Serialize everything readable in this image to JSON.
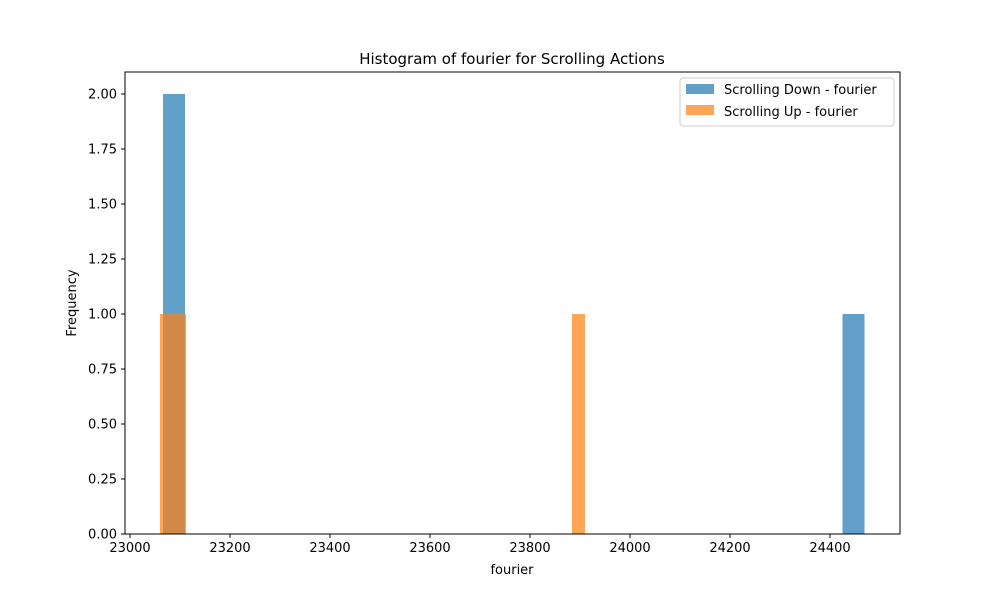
{
  "chart_data": {
    "type": "histogram",
    "title": "Histogram of fourier for Scrolling Actions",
    "xlabel": "fourier",
    "ylabel": "Frequency",
    "xlim": [
      22990,
      24540
    ],
    "ylim": [
      0,
      2.1
    ],
    "xticks": [
      23000,
      23200,
      23400,
      23600,
      23800,
      24000,
      24200,
      24400
    ],
    "yticks": [
      "0.00",
      "0.25",
      "0.50",
      "0.75",
      "1.00",
      "1.25",
      "1.50",
      "1.75",
      "2.00"
    ],
    "grid": false,
    "legend_position": "top-right",
    "series": [
      {
        "name": "Scrolling Down - fourier",
        "color": "#1f77b4",
        "opacity": 0.7,
        "bins": [
          {
            "x0": 23066,
            "x1": 23110,
            "count": 2
          },
          {
            "x0": 24425,
            "x1": 24469,
            "count": 1
          }
        ]
      },
      {
        "name": "Scrolling Up - fourier",
        "color": "#ff7f0e",
        "opacity": 0.7,
        "bins": [
          {
            "x0": 23060,
            "x1": 23112,
            "count": 1
          },
          {
            "x0": 23884,
            "x1": 23910,
            "count": 1
          }
        ]
      }
    ]
  }
}
